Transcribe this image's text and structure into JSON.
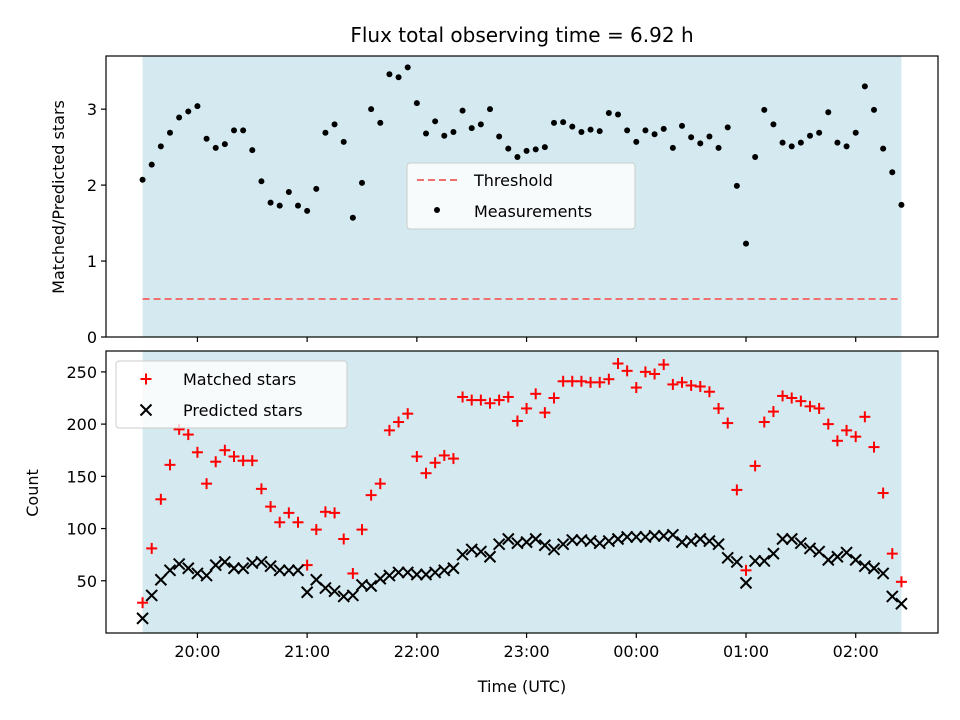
{
  "chart_data": [
    {
      "type": "scatter",
      "title": "Flux total observing time = 6.92 h",
      "ylabel": "Matched/Predicted stars",
      "xlabel": "",
      "ylim": [
        0,
        3.7
      ],
      "yticks": [
        0,
        1,
        2,
        3
      ],
      "x_is_time": true,
      "x_start": "19:30",
      "x_end": "02:25",
      "span": {
        "from": "19:30",
        "to": "02:25",
        "color": "#d4eaf0"
      },
      "threshold": {
        "name": "Threshold",
        "value": 0.5,
        "color": "#f07070",
        "style": "dashed"
      },
      "legend_position": "center-right",
      "series": [
        {
          "name": "Measurements",
          "color": "#000000",
          "x": [
            "19:30",
            "19:35",
            "19:40",
            "19:45",
            "19:50",
            "19:55",
            "20:00",
            "20:05",
            "20:10",
            "20:15",
            "20:20",
            "20:25",
            "20:30",
            "20:35",
            "20:40",
            "20:45",
            "20:50",
            "20:55",
            "21:00",
            "21:05",
            "21:10",
            "21:15",
            "21:20",
            "21:25",
            "21:30",
            "21:35",
            "21:40",
            "21:45",
            "21:50",
            "21:55",
            "22:00",
            "22:05",
            "22:10",
            "22:15",
            "22:20",
            "22:25",
            "22:30",
            "22:35",
            "22:40",
            "22:45",
            "22:50",
            "22:55",
            "23:00",
            "23:05",
            "23:10",
            "23:15",
            "23:20",
            "23:25",
            "23:30",
            "23:35",
            "23:40",
            "23:45",
            "23:50",
            "23:55",
            "00:00",
            "00:05",
            "00:10",
            "00:15",
            "00:20",
            "00:25",
            "00:30",
            "00:35",
            "00:40",
            "00:45",
            "00:50",
            "00:55",
            "01:00",
            "01:05",
            "01:10",
            "01:15",
            "01:20",
            "01:25",
            "01:30",
            "01:35",
            "01:40",
            "01:45",
            "01:50",
            "01:55",
            "02:00",
            "02:05",
            "02:10",
            "02:15",
            "02:20",
            "02:25"
          ],
          "values": [
            2.07,
            2.27,
            2.51,
            2.69,
            2.89,
            2.97,
            3.04,
            2.61,
            2.49,
            2.54,
            2.72,
            2.72,
            2.46,
            2.05,
            1.77,
            1.73,
            1.91,
            1.73,
            1.66,
            1.95,
            2.69,
            2.8,
            2.57,
            1.57,
            2.03,
            3.0,
            2.82,
            3.46,
            3.42,
            3.55,
            3.08,
            2.68,
            2.84,
            2.65,
            2.7,
            2.98,
            2.75,
            2.8,
            3.0,
            2.64,
            2.48,
            2.37,
            2.45,
            2.47,
            2.5,
            2.82,
            2.83,
            2.77,
            2.7,
            2.73,
            2.71,
            2.95,
            2.93,
            2.72,
            2.57,
            2.72,
            2.67,
            2.74,
            2.49,
            2.78,
            2.63,
            2.55,
            2.64,
            2.49,
            2.76,
            1.99,
            1.23,
            2.37,
            2.99,
            2.8,
            2.56,
            2.51,
            2.56,
            2.65,
            2.69,
            2.96,
            2.56,
            2.51,
            2.69,
            3.3,
            2.99,
            2.48,
            2.17,
            1.74
          ]
        }
      ]
    },
    {
      "type": "scatter",
      "title": "",
      "xlabel": "Time (UTC)",
      "ylabel": "Count",
      "ylim": [
        0,
        270
      ],
      "yticks": [
        50,
        100,
        150,
        200,
        250
      ],
      "x_is_time": true,
      "xticks": [
        "20:00",
        "21:00",
        "22:00",
        "23:00",
        "00:00",
        "01:00",
        "02:00"
      ],
      "span": {
        "from": "19:30",
        "to": "02:25",
        "color": "#d4eaf0"
      },
      "legend_position": "upper-left",
      "series": [
        {
          "name": "Matched stars",
          "marker": "+",
          "color": "#ff0000",
          "x": [
            "19:30",
            "19:35",
            "19:40",
            "19:45",
            "19:50",
            "19:55",
            "20:00",
            "20:05",
            "20:10",
            "20:15",
            "20:20",
            "20:25",
            "20:30",
            "20:35",
            "20:40",
            "20:45",
            "20:50",
            "20:55",
            "21:00",
            "21:05",
            "21:10",
            "21:15",
            "21:20",
            "21:25",
            "21:30",
            "21:35",
            "21:40",
            "21:45",
            "21:50",
            "21:55",
            "22:00",
            "22:05",
            "22:10",
            "22:15",
            "22:20",
            "22:25",
            "22:30",
            "22:35",
            "22:40",
            "22:45",
            "22:50",
            "22:55",
            "23:00",
            "23:05",
            "23:10",
            "23:15",
            "23:20",
            "23:25",
            "23:30",
            "23:35",
            "23:40",
            "23:45",
            "23:50",
            "23:55",
            "00:00",
            "00:05",
            "00:10",
            "00:15",
            "00:20",
            "00:25",
            "00:30",
            "00:35",
            "00:40",
            "00:45",
            "00:50",
            "00:55",
            "01:00",
            "01:05",
            "01:10",
            "01:15",
            "01:20",
            "01:25",
            "01:30",
            "01:35",
            "01:40",
            "01:45",
            "01:50",
            "01:55",
            "02:00",
            "02:05",
            "02:10",
            "02:15",
            "02:20",
            "02:25"
          ],
          "values": [
            29,
            81,
            128,
            161,
            195,
            190,
            173,
            143,
            164,
            175,
            169,
            165,
            165,
            138,
            121,
            106,
            115,
            106,
            65,
            99,
            116,
            115,
            90,
            57,
            99,
            132,
            143,
            194,
            202,
            210,
            169,
            153,
            163,
            170,
            167,
            226,
            223,
            223,
            220,
            223,
            226,
            203,
            215,
            229,
            211,
            225,
            241,
            241,
            241,
            240,
            240,
            243,
            258,
            251,
            235,
            250,
            248,
            257,
            238,
            240,
            237,
            236,
            231,
            215,
            201,
            137,
            60,
            160,
            202,
            212,
            227,
            225,
            222,
            217,
            215,
            200,
            184,
            194,
            188,
            207,
            178,
            134,
            76,
            49
          ]
        },
        {
          "name": "Predicted stars",
          "marker": "x",
          "color": "#000000",
          "x": [
            "19:30",
            "19:35",
            "19:40",
            "19:45",
            "19:50",
            "19:55",
            "20:00",
            "20:05",
            "20:10",
            "20:15",
            "20:20",
            "20:25",
            "20:30",
            "20:35",
            "20:40",
            "20:45",
            "20:50",
            "20:55",
            "21:00",
            "21:05",
            "21:10",
            "21:15",
            "21:20",
            "21:25",
            "21:30",
            "21:35",
            "21:40",
            "21:45",
            "21:50",
            "21:55",
            "22:00",
            "22:05",
            "22:10",
            "22:15",
            "22:20",
            "22:25",
            "22:30",
            "22:35",
            "22:40",
            "22:45",
            "22:50",
            "22:55",
            "23:00",
            "23:05",
            "23:10",
            "23:15",
            "23:20",
            "23:25",
            "23:30",
            "23:35",
            "23:40",
            "23:45",
            "23:50",
            "23:55",
            "00:00",
            "00:05",
            "00:10",
            "00:15",
            "00:20",
            "00:25",
            "00:30",
            "00:35",
            "00:40",
            "00:45",
            "00:50",
            "00:55",
            "01:00",
            "01:05",
            "01:10",
            "01:15",
            "01:20",
            "01:25",
            "01:30",
            "01:35",
            "01:40",
            "01:45",
            "01:50",
            "01:55",
            "02:00",
            "02:05",
            "02:10",
            "02:15",
            "02:20",
            "02:25"
          ],
          "values": [
            14,
            36,
            51,
            60,
            66,
            62,
            57,
            55,
            65,
            68,
            62,
            62,
            67,
            68,
            64,
            60,
            60,
            60,
            39,
            51,
            43,
            40,
            35,
            36,
            46,
            45,
            52,
            55,
            58,
            58,
            56,
            56,
            58,
            60,
            62,
            75,
            80,
            78,
            73,
            85,
            90,
            86,
            87,
            90,
            84,
            80,
            85,
            89,
            89,
            88,
            86,
            88,
            90,
            92,
            92,
            92,
            93,
            93,
            94,
            87,
            88,
            90,
            88,
            85,
            72,
            68,
            48,
            69,
            69,
            76,
            90,
            90,
            86,
            81,
            78,
            70,
            73,
            77,
            70,
            64,
            62,
            57,
            35,
            28
          ]
        }
      ]
    }
  ]
}
